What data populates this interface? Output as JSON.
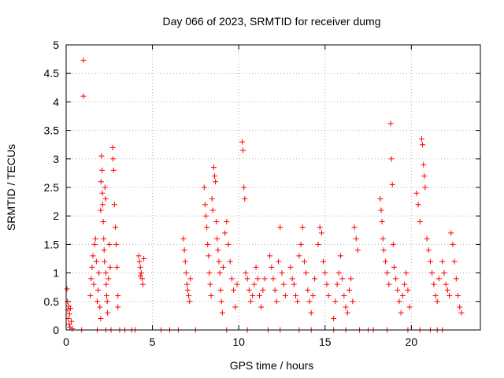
{
  "chart_data": {
    "type": "scatter",
    "title": "Day 066 of 2023, SRMTID for receiver dumg",
    "xlabel": "GPS time / hours",
    "ylabel": "SRMTID / TECUs",
    "xlim": [
      0,
      24
    ],
    "ylim": [
      0,
      5
    ],
    "x_ticks": [
      "0",
      "5",
      "10",
      "15",
      "20"
    ],
    "y_ticks": [
      "0",
      "0.5",
      "1",
      "1.5",
      "2",
      "2.5",
      "3",
      "3.5",
      "4",
      "4.5",
      "5"
    ],
    "grid": true,
    "marker": "+",
    "series": [
      {
        "name": "SRMTID",
        "color": "#ff0000",
        "points": [
          [
            0.05,
            0.72
          ],
          [
            0.08,
            0.5
          ],
          [
            0.1,
            0.35
          ],
          [
            0.12,
            0.2
          ],
          [
            0.15,
            0.42
          ],
          [
            0.18,
            0.1
          ],
          [
            0.2,
            0.28
          ],
          [
            0.22,
            0.05
          ],
          [
            0.25,
            0.38
          ],
          [
            0.3,
            0.15
          ],
          [
            0.35,
            0.02
          ],
          [
            1.0,
            4.73
          ],
          [
            1.0,
            4.1
          ],
          [
            1.4,
            0.6
          ],
          [
            1.45,
            0.9
          ],
          [
            1.5,
            1.1
          ],
          [
            1.55,
            1.3
          ],
          [
            1.6,
            0.8
          ],
          [
            1.65,
            1.5
          ],
          [
            1.7,
            1.6
          ],
          [
            1.75,
            1.2
          ],
          [
            1.8,
            0.5
          ],
          [
            1.85,
            0.7
          ],
          [
            1.9,
            1.0
          ],
          [
            1.95,
            0.4
          ],
          [
            2.0,
            0.2
          ],
          [
            2.0,
            2.1
          ],
          [
            2.02,
            2.6
          ],
          [
            2.05,
            3.05
          ],
          [
            2.08,
            2.8
          ],
          [
            2.1,
            2.4
          ],
          [
            2.12,
            2.2
          ],
          [
            2.15,
            1.9
          ],
          [
            2.18,
            1.6
          ],
          [
            2.2,
            1.4
          ],
          [
            2.22,
            1.2
          ],
          [
            2.25,
            2.5
          ],
          [
            2.28,
            2.3
          ],
          [
            2.3,
            1.0
          ],
          [
            2.32,
            0.8
          ],
          [
            2.35,
            0.6
          ],
          [
            2.38,
            0.5
          ],
          [
            2.4,
            0.3
          ],
          [
            2.45,
            0.9
          ],
          [
            2.5,
            1.5
          ],
          [
            2.55,
            1.1
          ],
          [
            2.7,
            3.2
          ],
          [
            2.72,
            3.0
          ],
          [
            2.75,
            2.8
          ],
          [
            2.8,
            2.2
          ],
          [
            2.85,
            1.8
          ],
          [
            2.9,
            1.5
          ],
          [
            2.95,
            1.1
          ],
          [
            3.0,
            0.6
          ],
          [
            3.0,
            0.4
          ],
          [
            4.2,
            1.3
          ],
          [
            4.25,
            1.2
          ],
          [
            4.3,
            1.1
          ],
          [
            4.35,
            1.0
          ],
          [
            4.4,
            0.9
          ],
          [
            4.45,
            0.8
          ],
          [
            4.5,
            1.25
          ],
          [
            4.3,
            0.95
          ],
          [
            6.8,
            1.6
          ],
          [
            6.85,
            1.4
          ],
          [
            6.9,
            1.2
          ],
          [
            6.95,
            1.0
          ],
          [
            7.0,
            0.8
          ],
          [
            7.05,
            0.7
          ],
          [
            7.1,
            0.6
          ],
          [
            7.15,
            0.5
          ],
          [
            7.2,
            0.9
          ],
          [
            8.0,
            2.5
          ],
          [
            8.05,
            2.2
          ],
          [
            8.1,
            2.0
          ],
          [
            8.15,
            1.8
          ],
          [
            8.2,
            1.5
          ],
          [
            8.25,
            1.3
          ],
          [
            8.3,
            1.0
          ],
          [
            8.35,
            0.8
          ],
          [
            8.4,
            0.6
          ],
          [
            8.45,
            2.3
          ],
          [
            8.5,
            2.1
          ],
          [
            8.55,
            2.85
          ],
          [
            8.6,
            2.7
          ],
          [
            8.65,
            2.6
          ],
          [
            8.7,
            1.9
          ],
          [
            8.75,
            1.6
          ],
          [
            8.8,
            1.4
          ],
          [
            8.85,
            1.2
          ],
          [
            8.9,
            1.0
          ],
          [
            8.95,
            0.7
          ],
          [
            9.0,
            0.5
          ],
          [
            9.05,
            0.3
          ],
          [
            9.1,
            1.1
          ],
          [
            9.2,
            1.7
          ],
          [
            9.3,
            1.9
          ],
          [
            9.4,
            1.5
          ],
          [
            9.5,
            1.2
          ],
          [
            9.6,
            0.9
          ],
          [
            9.7,
            0.7
          ],
          [
            9.8,
            0.4
          ],
          [
            9.9,
            0.8
          ],
          [
            10.2,
            3.3
          ],
          [
            10.25,
            3.15
          ],
          [
            10.3,
            2.5
          ],
          [
            10.35,
            2.3
          ],
          [
            10.4,
            1.0
          ],
          [
            10.5,
            0.9
          ],
          [
            10.6,
            0.7
          ],
          [
            10.7,
            0.5
          ],
          [
            10.8,
            0.6
          ],
          [
            10.9,
            0.8
          ],
          [
            11.0,
            1.1
          ],
          [
            11.1,
            0.9
          ],
          [
            11.2,
            0.6
          ],
          [
            11.3,
            0.4
          ],
          [
            11.4,
            0.7
          ],
          [
            11.5,
            0.9
          ],
          [
            11.8,
            1.3
          ],
          [
            11.9,
            1.1
          ],
          [
            12.0,
            0.9
          ],
          [
            12.1,
            0.7
          ],
          [
            12.2,
            0.5
          ],
          [
            12.3,
            1.2
          ],
          [
            12.4,
            1.8
          ],
          [
            12.5,
            1.0
          ],
          [
            12.6,
            0.8
          ],
          [
            12.7,
            0.6
          ],
          [
            13.0,
            1.1
          ],
          [
            13.1,
            0.9
          ],
          [
            13.2,
            0.8
          ],
          [
            13.3,
            0.6
          ],
          [
            13.4,
            0.5
          ],
          [
            13.5,
            1.3
          ],
          [
            13.6,
            1.5
          ],
          [
            13.7,
            1.8
          ],
          [
            13.8,
            1.2
          ],
          [
            13.9,
            1.0
          ],
          [
            14.0,
            0.7
          ],
          [
            14.1,
            0.5
          ],
          [
            14.2,
            0.3
          ],
          [
            14.3,
            0.6
          ],
          [
            14.4,
            0.9
          ],
          [
            14.6,
            1.5
          ],
          [
            14.7,
            1.8
          ],
          [
            14.8,
            1.7
          ],
          [
            14.9,
            1.2
          ],
          [
            15.0,
            1.0
          ],
          [
            15.1,
            0.8
          ],
          [
            15.2,
            0.6
          ],
          [
            15.5,
            0.2
          ],
          [
            15.6,
            0.5
          ],
          [
            15.7,
            0.8
          ],
          [
            15.8,
            1.0
          ],
          [
            15.9,
            1.3
          ],
          [
            16.0,
            0.9
          ],
          [
            16.1,
            0.6
          ],
          [
            16.2,
            0.4
          ],
          [
            16.3,
            0.3
          ],
          [
            16.4,
            0.7
          ],
          [
            16.5,
            0.9
          ],
          [
            16.6,
            0.5
          ],
          [
            16.7,
            1.8
          ],
          [
            16.8,
            1.6
          ],
          [
            16.9,
            1.4
          ],
          [
            18.2,
            2.3
          ],
          [
            18.25,
            2.1
          ],
          [
            18.3,
            1.9
          ],
          [
            18.35,
            1.6
          ],
          [
            18.4,
            1.4
          ],
          [
            18.5,
            1.2
          ],
          [
            18.6,
            1.0
          ],
          [
            18.7,
            0.8
          ],
          [
            18.8,
            3.62
          ],
          [
            18.85,
            3.0
          ],
          [
            18.9,
            2.55
          ],
          [
            18.95,
            1.5
          ],
          [
            19.0,
            1.1
          ],
          [
            19.1,
            0.9
          ],
          [
            19.2,
            0.7
          ],
          [
            19.3,
            0.5
          ],
          [
            19.4,
            0.3
          ],
          [
            19.5,
            0.6
          ],
          [
            19.6,
            0.8
          ],
          [
            19.7,
            1.0
          ],
          [
            19.8,
            0.7
          ],
          [
            19.9,
            0.4
          ],
          [
            20.3,
            2.4
          ],
          [
            20.4,
            2.2
          ],
          [
            20.5,
            1.9
          ],
          [
            20.6,
            3.35
          ],
          [
            20.65,
            3.25
          ],
          [
            20.7,
            2.9
          ],
          [
            20.75,
            2.7
          ],
          [
            20.8,
            2.5
          ],
          [
            20.9,
            1.6
          ],
          [
            21.0,
            1.4
          ],
          [
            21.1,
            1.2
          ],
          [
            21.2,
            1.0
          ],
          [
            21.3,
            0.8
          ],
          [
            21.4,
            0.6
          ],
          [
            21.5,
            0.5
          ],
          [
            21.6,
            0.9
          ],
          [
            21.8,
            1.2
          ],
          [
            21.9,
            1.0
          ],
          [
            22.0,
            0.8
          ],
          [
            22.1,
            0.7
          ],
          [
            22.2,
            0.6
          ],
          [
            22.3,
            1.7
          ],
          [
            22.4,
            1.5
          ],
          [
            22.5,
            1.2
          ],
          [
            22.6,
            0.9
          ],
          [
            22.7,
            0.6
          ],
          [
            22.8,
            0.4
          ],
          [
            22.9,
            0.3
          ]
        ],
        "zero_x": [
          0.9,
          1.8,
          2.3,
          2.6,
          3.1,
          3.4,
          3.8,
          4.0,
          5.5,
          6.0,
          6.5,
          7.5,
          9.3,
          10.5,
          11.7,
          12.4,
          13.5,
          14.2,
          15.5,
          16.2,
          17.0,
          17.5,
          17.8,
          18.6,
          19.8,
          20.5,
          21.1,
          21.5,
          21.8
        ]
      }
    ]
  }
}
